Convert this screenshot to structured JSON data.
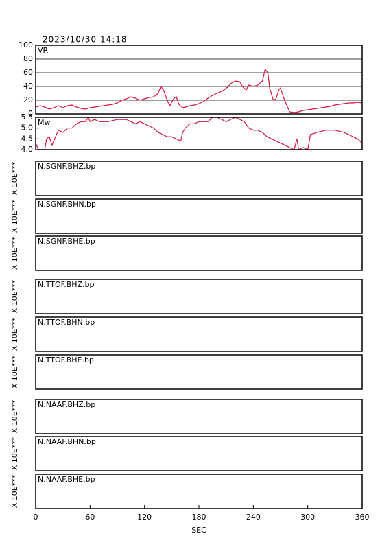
{
  "chart_data": [
    {
      "type": "line",
      "title": "2023/10/30 14:18",
      "label": "VR",
      "color": "#d4143c",
      "grid": true,
      "x": [
        0,
        5,
        10,
        15,
        20,
        25,
        30,
        35,
        40,
        45,
        50,
        55,
        60,
        65,
        70,
        75,
        80,
        85,
        90,
        95,
        100,
        105,
        110,
        115,
        120,
        125,
        130,
        135,
        138,
        141,
        145,
        148,
        152,
        155,
        158,
        162,
        165,
        170,
        175,
        180,
        185,
        190,
        195,
        200,
        205,
        210,
        215,
        220,
        225,
        228,
        232,
        235,
        240,
        245,
        250,
        253,
        256,
        258,
        262,
        265,
        268,
        270,
        273,
        277,
        280,
        285,
        290,
        295,
        300,
        305,
        310,
        315,
        320,
        325,
        330,
        335,
        340,
        345,
        350,
        355,
        360
      ],
      "values": [
        10,
        12,
        10,
        7,
        9,
        12,
        9,
        12,
        13,
        10,
        8,
        7,
        9,
        10,
        11,
        12,
        13,
        14,
        16,
        20,
        22,
        25,
        23,
        20,
        22,
        24,
        25,
        30,
        40,
        35,
        20,
        12,
        22,
        25,
        14,
        9,
        10,
        12,
        13,
        15,
        18,
        23,
        27,
        30,
        33,
        37,
        44,
        48,
        47,
        40,
        35,
        42,
        40,
        42,
        48,
        65,
        60,
        38,
        20,
        22,
        35,
        38,
        25,
        12,
        3,
        2,
        3,
        5,
        6,
        7,
        8,
        9,
        10,
        11,
        13,
        14,
        15,
        16,
        16,
        17,
        16
      ],
      "xlim": [
        0,
        360
      ],
      "ylim": [
        0,
        100
      ],
      "yticks": [
        0,
        20,
        40,
        60,
        80,
        100
      ]
    },
    {
      "type": "line",
      "label": "Mw",
      "color": "#d4143c",
      "grid": false,
      "x": [
        0,
        3,
        10,
        12,
        15,
        18,
        20,
        25,
        30,
        35,
        40,
        45,
        50,
        55,
        58,
        60,
        65,
        70,
        80,
        90,
        100,
        110,
        115,
        120,
        125,
        130,
        135,
        140,
        145,
        150,
        155,
        160,
        162,
        165,
        170,
        175,
        180,
        185,
        190,
        195,
        200,
        205,
        210,
        215,
        220,
        225,
        230,
        235,
        240,
        245,
        250,
        255,
        260,
        265,
        270,
        275,
        280,
        285,
        288,
        290,
        295,
        300,
        303,
        310,
        320,
        325,
        330,
        340,
        345,
        350,
        355,
        360
      ],
      "values": [
        4.3,
        4.0,
        4.0,
        4.5,
        4.6,
        4.2,
        4.4,
        4.9,
        4.8,
        5.0,
        5.0,
        5.2,
        5.3,
        5.3,
        5.5,
        5.3,
        5.4,
        5.3,
        5.3,
        5.4,
        5.4,
        5.2,
        5.3,
        5.2,
        5.1,
        5.0,
        4.8,
        4.7,
        4.6,
        4.6,
        4.5,
        4.4,
        4.8,
        5.0,
        5.2,
        5.2,
        5.3,
        5.3,
        5.3,
        5.5,
        5.5,
        5.4,
        5.3,
        5.4,
        5.5,
        5.4,
        5.3,
        5.0,
        4.9,
        4.9,
        4.8,
        4.6,
        4.5,
        4.4,
        4.3,
        4.2,
        4.1,
        4.0,
        4.5,
        4.0,
        4.1,
        4.0,
        4.7,
        4.8,
        4.9,
        4.9,
        4.9,
        4.8,
        4.7,
        4.6,
        4.5,
        4.3
      ],
      "xlim": [
        0,
        360
      ],
      "ylim": [
        4.0,
        5.5
      ],
      "yticks": [
        {
          "value": 4,
          "label": "4.0"
        },
        4.5,
        {
          "value": 5,
          "label": "5.0"
        },
        5.5
      ]
    },
    {
      "type": "panels",
      "xlabel": "SEC",
      "xlim": [
        0,
        360
      ],
      "xticks": [
        0,
        60,
        120,
        180,
        240,
        300,
        360
      ],
      "panels": [
        {
          "label": "N.SGNF.BHZ.bp",
          "ylabel": "X 10E***"
        },
        {
          "label": "N.SGNF.BHN.bp",
          "ylabel": "X 10E***"
        },
        {
          "label": "N.SGNF.BHE.bp",
          "ylabel": "X 10E***"
        },
        {
          "label": "N.TTOF.BHZ.bp",
          "ylabel": "X 10E***"
        },
        {
          "label": "N.TTOF.BHN.bp",
          "ylabel": "X 10E***"
        },
        {
          "label": "N.TTOF.BHE.bp",
          "ylabel": "X 10E***"
        },
        {
          "label": "N.NAAF.BHZ.bp",
          "ylabel": "X 10E***"
        },
        {
          "label": "N.NAAF.BHN.bp",
          "ylabel": "X 10E***"
        },
        {
          "label": "N.NAAF.BHE.bp",
          "ylabel": "X 10E***"
        }
      ]
    }
  ]
}
